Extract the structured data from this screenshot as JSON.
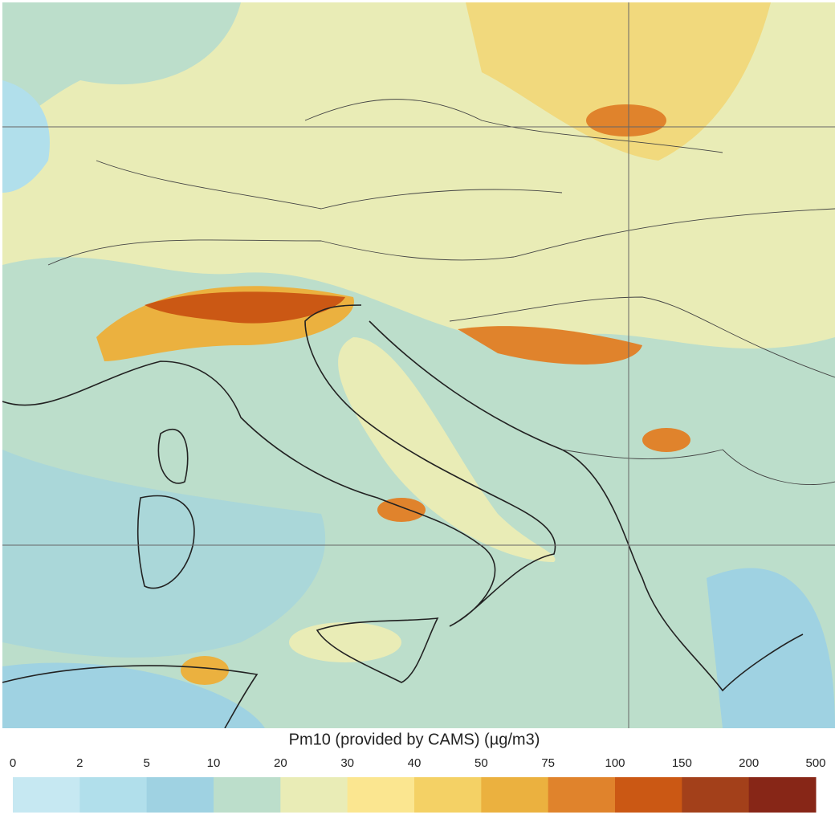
{
  "colorbar": {
    "title": "Pm10 (provided by CAMS) (µg/m3)",
    "ticks": [
      0,
      2,
      5,
      10,
      20,
      30,
      40,
      50,
      75,
      100,
      150,
      200,
      500
    ],
    "colors": [
      "#c6e8f2",
      "#b1dfeb",
      "#9fd2e2",
      "#bcdecb",
      "#e9ecb6",
      "#fbe690",
      "#f4d165",
      "#ebb13f",
      "#e0832c",
      "#cb5814",
      "#a3401a",
      "#872617"
    ]
  }
}
